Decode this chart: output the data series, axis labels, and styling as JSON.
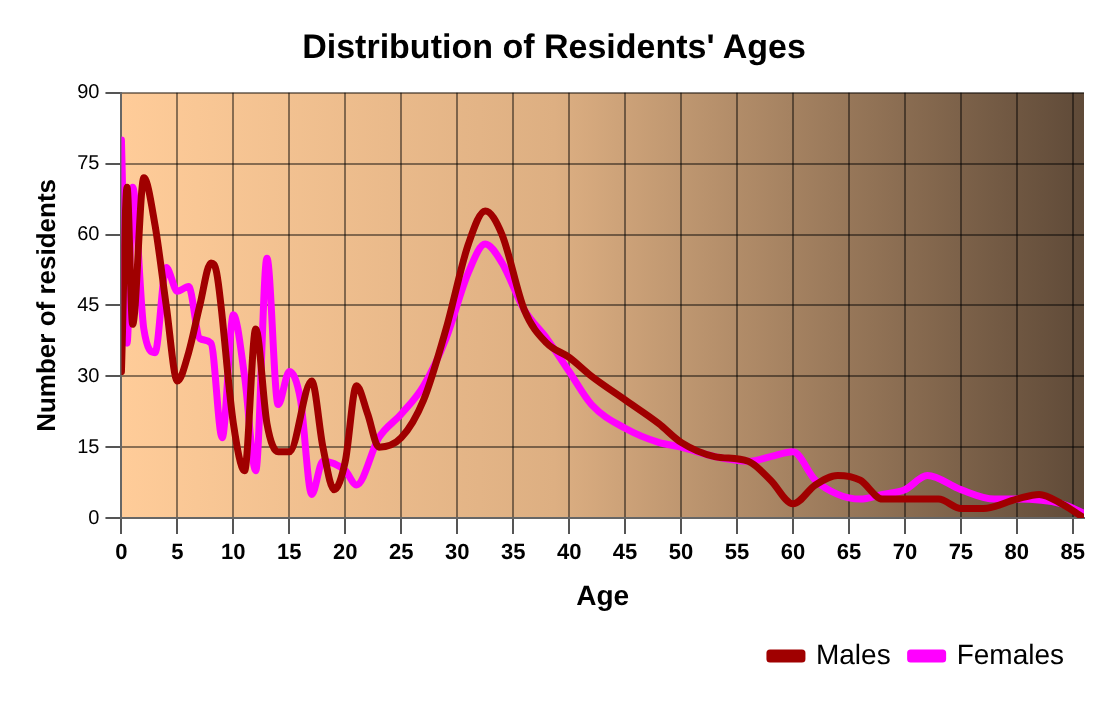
{
  "chart_data": {
    "type": "line",
    "title": "Distribution of Residents' Ages",
    "xlabel": "Age",
    "ylabel": "Number of residents",
    "xlim": [
      0,
      86
    ],
    "xticks": [
      0,
      5,
      10,
      15,
      20,
      25,
      30,
      35,
      40,
      45,
      50,
      55,
      60,
      65,
      70,
      75,
      80,
      85
    ],
    "ylim": [
      0,
      90
    ],
    "yticks": [
      0,
      15,
      30,
      45,
      60,
      75,
      90
    ],
    "grid": true,
    "legend": "bottom right",
    "marker": "none",
    "line_style": "solid",
    "series": [
      {
        "name": "Males",
        "color": "#a00000",
        "x": [
          0,
          0.5,
          1,
          2,
          3,
          4,
          5,
          6,
          7,
          8,
          8.5,
          10,
          11,
          12,
          13,
          14,
          15,
          17,
          18,
          19,
          20,
          21,
          22,
          23,
          25,
          27,
          29,
          31,
          32.5,
          34,
          36,
          38,
          40,
          42,
          45,
          48,
          50,
          53,
          56,
          58,
          60,
          62,
          64,
          66,
          68,
          70,
          73,
          75,
          77,
          80,
          82,
          84,
          86
        ],
        "values": [
          31,
          70,
          41,
          72,
          62,
          45,
          29,
          35,
          45,
          54,
          52,
          20,
          10,
          40,
          20,
          14,
          14,
          29,
          15,
          6,
          12,
          28,
          22,
          15,
          17,
          25,
          40,
          58,
          65,
          60,
          44,
          37,
          34,
          30,
          25,
          20,
          16,
          13,
          12,
          8,
          3,
          7,
          9,
          8,
          4,
          4,
          4,
          2,
          2,
          4,
          5,
          3,
          0
        ]
      },
      {
        "name": "Females",
        "color": "#ff00ff",
        "x": [
          0,
          0.5,
          1,
          2,
          3,
          4,
          5,
          6,
          7,
          8,
          9,
          10,
          11,
          12,
          13,
          14,
          15,
          16,
          17,
          18,
          20,
          21,
          23,
          25,
          27,
          29,
          31,
          32.5,
          34,
          36,
          38,
          40,
          42,
          45,
          48,
          50,
          53,
          56,
          58,
          60,
          62,
          64,
          66,
          68,
          70,
          72,
          75,
          78,
          80,
          84,
          86
        ],
        "values": [
          80,
          37,
          70,
          40,
          35,
          53,
          48,
          49,
          38,
          37,
          17,
          43,
          30,
          10,
          55,
          24,
          31,
          25,
          5,
          12,
          10,
          7,
          17,
          22,
          28,
          38,
          52,
          58,
          54,
          44,
          38,
          31,
          24,
          19,
          16,
          15,
          13,
          12,
          13,
          14,
          8,
          5,
          4,
          5,
          6,
          9,
          6,
          4,
          4,
          3,
          1
        ]
      }
    ]
  }
}
